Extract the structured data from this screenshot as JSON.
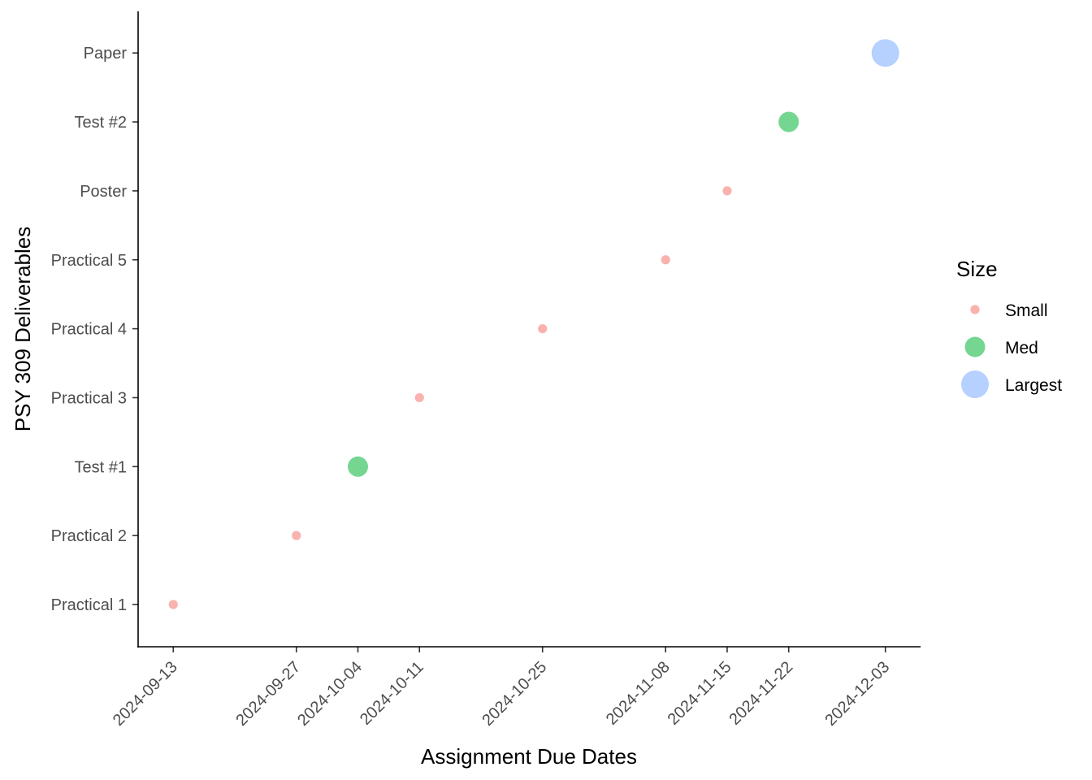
{
  "chart_data": {
    "type": "scatter",
    "xlabel": "Assignment Due Dates",
    "ylabel": "PSY 309 Deliverables",
    "x_ticks": [
      "2024-09-13",
      "2024-09-27",
      "2024-10-04",
      "2024-10-11",
      "2024-10-25",
      "2024-11-08",
      "2024-11-15",
      "2024-11-22",
      "2024-12-03"
    ],
    "xlim": [
      "2024-09-09",
      "2024-12-07"
    ],
    "categories": [
      "Practical 1",
      "Practical 2",
      "Test #1",
      "Practical 3",
      "Practical 4",
      "Practical 5",
      "Poster",
      "Test #2",
      "Paper"
    ],
    "points": [
      {
        "x": "2024-09-13",
        "y": "Practical 1",
        "size": "Small"
      },
      {
        "x": "2024-09-27",
        "y": "Practical 2",
        "size": "Small"
      },
      {
        "x": "2024-10-04",
        "y": "Test #1",
        "size": "Med"
      },
      {
        "x": "2024-10-11",
        "y": "Practical 3",
        "size": "Small"
      },
      {
        "x": "2024-10-25",
        "y": "Practical 4",
        "size": "Small"
      },
      {
        "x": "2024-11-08",
        "y": "Practical 5",
        "size": "Small"
      },
      {
        "x": "2024-11-15",
        "y": "Poster",
        "size": "Small"
      },
      {
        "x": "2024-11-22",
        "y": "Test #2",
        "size": "Med"
      },
      {
        "x": "2024-12-03",
        "y": "Paper",
        "size": "Largest"
      }
    ],
    "legend": {
      "title": "Size",
      "placement": "right",
      "items": [
        {
          "label": "Small",
          "color": "#F8A5A0"
        },
        {
          "label": "Med",
          "color": "#5DCF7F"
        },
        {
          "label": "Largest",
          "color": "#A9C8FF"
        }
      ]
    },
    "grid": false
  }
}
